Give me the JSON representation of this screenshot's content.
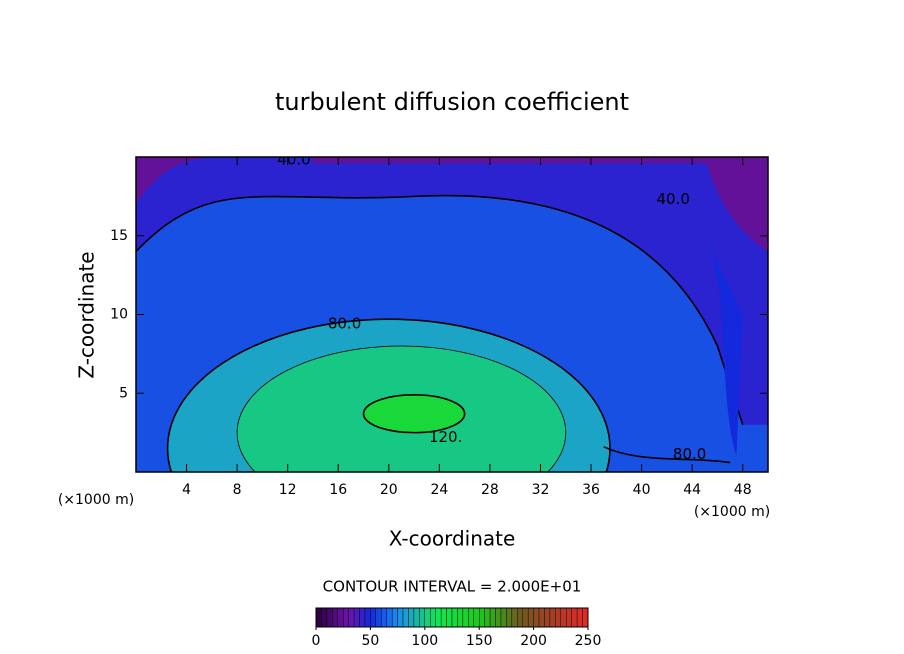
{
  "chart_data": {
    "type": "contour",
    "title": "turbulent diffusion coefficient",
    "xlabel": "X-coordinate",
    "ylabel": "Z-coordinate",
    "xunit": "(×1000 m)",
    "yunit": "(×1000 m)",
    "xlim": [
      0,
      50
    ],
    "xticks": [
      4,
      8,
      12,
      16,
      20,
      24,
      28,
      32,
      36,
      40,
      44,
      48
    ],
    "ylim": [
      0,
      20
    ],
    "yticks": [
      5,
      10,
      15
    ],
    "contour_levels": [
      {
        "value": 40,
        "label": "40.0"
      },
      {
        "value": 80,
        "label": "80.0"
      },
      {
        "value": 120,
        "label": "120."
      }
    ],
    "contour_interval": "CONTOUR INTERVAL = 2.000E+01",
    "clim": [
      0,
      250
    ],
    "cticks": [
      0,
      50,
      100,
      150,
      200,
      250
    ]
  }
}
